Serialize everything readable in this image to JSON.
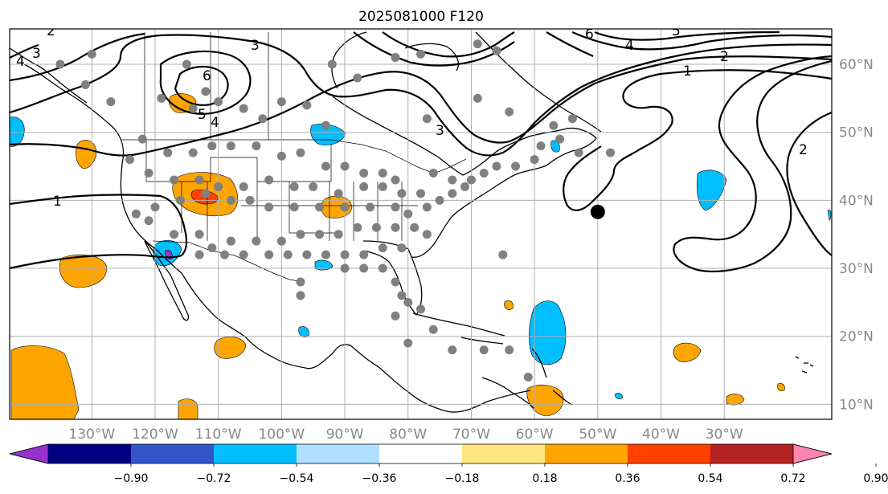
{
  "title": "2025081000 F120",
  "map": {
    "projection": "Plate Carree",
    "extent": {
      "lon_min": -143,
      "lon_max": -13,
      "lat_min": 7.8,
      "lat_max": 65.2
    },
    "gridlines": true,
    "lon_labels": [
      "130°W",
      "120°W",
      "110°W",
      "100°W",
      "90°W",
      "80°W",
      "70°W",
      "60°W",
      "50°W",
      "40°W",
      "30°W"
    ],
    "lat_labels": [
      "10°N",
      "20°N",
      "30°N",
      "40°N",
      "50°N",
      "60°N"
    ],
    "lon_ticks": [
      -130,
      -120,
      -110,
      -100,
      -90,
      -80,
      -70,
      -60,
      -50,
      -40,
      -30
    ],
    "lat_ticks": [
      10,
      20,
      30,
      40,
      50,
      60
    ],
    "contour_labels": [
      "1",
      "2",
      "3",
      "4",
      "5",
      "6"
    ],
    "marker": {
      "lon": -50,
      "lat": 38.3,
      "kind": "storm-position"
    },
    "station_color": "#808080",
    "stations": [
      [
        -135,
        60
      ],
      [
        -130,
        61.5
      ],
      [
        -131,
        57
      ],
      [
        -127,
        54.5
      ],
      [
        -119,
        55
      ],
      [
        -115,
        60
      ],
      [
        -112,
        56
      ],
      [
        -114,
        53.5
      ],
      [
        -110,
        54.5
      ],
      [
        -106,
        53.5
      ],
      [
        -103,
        52
      ],
      [
        -100,
        54.5
      ],
      [
        -96,
        54
      ],
      [
        -93,
        51
      ],
      [
        -92,
        60
      ],
      [
        -88,
        58
      ],
      [
        -78,
        61.5
      ],
      [
        -69,
        63
      ],
      [
        -66,
        62
      ],
      [
        -77,
        52
      ],
      [
        -69,
        55
      ],
      [
        -64,
        53
      ],
      [
        -57,
        51
      ],
      [
        -60,
        46
      ],
      [
        -63,
        45
      ],
      [
        -66,
        45
      ],
      [
        -68,
        44
      ],
      [
        -70,
        43
      ],
      [
        -73,
        43
      ],
      [
        -76,
        44
      ],
      [
        -82,
        43
      ],
      [
        -84,
        44
      ],
      [
        -87,
        44
      ],
      [
        -90,
        45
      ],
      [
        -93,
        45
      ],
      [
        -97,
        47
      ],
      [
        -100,
        46.5
      ],
      [
        -104,
        48
      ],
      [
        -108,
        48
      ],
      [
        -111,
        48
      ],
      [
        -114,
        47
      ],
      [
        -118,
        47
      ],
      [
        -122,
        49
      ],
      [
        -124,
        46
      ],
      [
        -121,
        44
      ],
      [
        -117,
        43
      ],
      [
        -113,
        43
      ],
      [
        -110,
        42
      ],
      [
        -106,
        42
      ],
      [
        -102,
        43
      ],
      [
        -98,
        42
      ],
      [
        -95,
        42
      ],
      [
        -91,
        41
      ],
      [
        -87,
        42
      ],
      [
        -84,
        42
      ],
      [
        -81,
        41
      ],
      [
        -78,
        41
      ],
      [
        -75,
        40
      ],
      [
        -73,
        41
      ],
      [
        -71,
        42
      ],
      [
        -77,
        39
      ],
      [
        -80,
        38
      ],
      [
        -82,
        39
      ],
      [
        -86,
        39
      ],
      [
        -90,
        39
      ],
      [
        -94,
        39
      ],
      [
        -98,
        39
      ],
      [
        -102,
        39
      ],
      [
        -105,
        40
      ],
      [
        -108,
        40
      ],
      [
        -112,
        41
      ],
      [
        -116,
        40
      ],
      [
        -120,
        39
      ],
      [
        -123,
        38
      ],
      [
        -121,
        37
      ],
      [
        -117,
        35
      ],
      [
        -113,
        35
      ],
      [
        -111,
        33
      ],
      [
        -108,
        34
      ],
      [
        -104,
        34
      ],
      [
        -100,
        34
      ],
      [
        -97,
        35
      ],
      [
        -94,
        35
      ],
      [
        -91,
        35
      ],
      [
        -88,
        36
      ],
      [
        -85,
        36
      ],
      [
        -82,
        36
      ],
      [
        -79,
        36
      ],
      [
        -77,
        35
      ],
      [
        -81,
        33
      ],
      [
        -84,
        33
      ],
      [
        -87,
        32
      ],
      [
        -90,
        32
      ],
      [
        -93,
        32
      ],
      [
        -96,
        32
      ],
      [
        -99,
        32
      ],
      [
        -102,
        32
      ],
      [
        -106,
        32
      ],
      [
        -109,
        32
      ],
      [
        -113,
        32
      ],
      [
        -97,
        28
      ],
      [
        -97,
        26
      ],
      [
        -90,
        30
      ],
      [
        -87,
        30
      ],
      [
        -84,
        30
      ],
      [
        -82,
        28
      ],
      [
        -81,
        26
      ],
      [
        -80,
        25
      ],
      [
        -82,
        23
      ],
      [
        -78,
        24
      ],
      [
        -76,
        21
      ],
      [
        -73,
        18
      ],
      [
        -68,
        18
      ],
      [
        -64,
        18
      ],
      [
        -61,
        14
      ],
      [
        -80,
        19
      ],
      [
        -65,
        32
      ],
      [
        -48,
        47
      ],
      [
        -53,
        47
      ],
      [
        -56,
        49
      ],
      [
        -59,
        48
      ],
      [
        -54,
        52
      ],
      [
        -82,
        61
      ]
    ],
    "colorbar": {
      "ticks": [
        "−0.90",
        "−0.72",
        "−0.54",
        "−0.36",
        "−0.18",
        "0.18",
        "0.36",
        "0.54",
        "0.72",
        "0.90"
      ],
      "colors": [
        "#9932cc",
        "#000080",
        "#3355cc",
        "#00bfff",
        "#b0e0ff",
        "#ffffff",
        "#ffe680",
        "#ffa500",
        "#ff4000",
        "#b22222",
        "#ff85b5"
      ]
    }
  }
}
